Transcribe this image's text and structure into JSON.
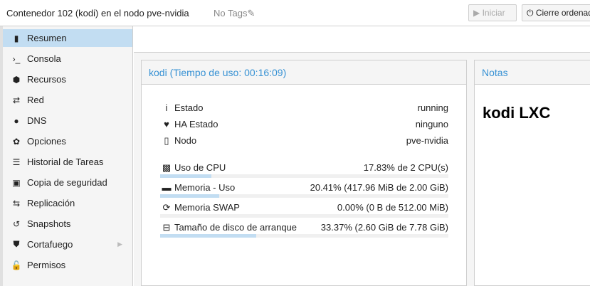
{
  "header": {
    "title": "Contenedor 102 (kodi) en el nodo pve-nvidia",
    "tags": "No Tags",
    "start_label": "Iniciar",
    "shutdown_label": "Cierre ordenado"
  },
  "sidebar": {
    "items": [
      {
        "label": "Resumen",
        "icon": "book-icon",
        "active": true
      },
      {
        "label": "Consola",
        "icon": "terminal-icon"
      },
      {
        "label": "Recursos",
        "icon": "cube-icon"
      },
      {
        "label": "Red",
        "icon": "exchange-icon"
      },
      {
        "label": "DNS",
        "icon": "globe-icon"
      },
      {
        "label": "Opciones",
        "icon": "gear-icon"
      },
      {
        "label": "Historial de Tareas",
        "icon": "list-icon"
      },
      {
        "label": "Copia de seguridad",
        "icon": "floppy-icon"
      },
      {
        "label": "Replicación",
        "icon": "retweet-icon"
      },
      {
        "label": "Snapshots",
        "icon": "history-icon"
      },
      {
        "label": "Cortafuego",
        "icon": "shield-icon",
        "expandable": true
      },
      {
        "label": "Permisos",
        "icon": "unlock-icon"
      }
    ]
  },
  "status": {
    "title": "kodi (Tiempo de uso: 00:16:09)",
    "info": [
      {
        "label": "Estado",
        "value": "running",
        "icon": "info-icon"
      },
      {
        "label": "HA Estado",
        "value": "ninguno",
        "icon": "heartbeat-icon"
      },
      {
        "label": "Nodo",
        "value": "pve-nvidia",
        "icon": "server-icon"
      }
    ],
    "usage": [
      {
        "label": "Uso de CPU",
        "value": "17.83% de 2 CPU(s)",
        "percent": 17.83,
        "icon": "cpu-icon"
      },
      {
        "label": "Memoria - Uso",
        "value": "20.41% (417.96 MiB de 2.00 GiB)",
        "percent": 20.41,
        "icon": "memory-icon"
      },
      {
        "label": "Memoria SWAP",
        "value": "0.00% (0 B de 512.00 MiB)",
        "percent": 0,
        "icon": "refresh-icon"
      },
      {
        "label": "Tamaño de disco de arranque",
        "value": "33.37% (2.60 GiB de 7.78 GiB)",
        "percent": 33.37,
        "icon": "hdd-icon"
      }
    ]
  },
  "notes": {
    "title": "Notas",
    "content": "kodi LXC"
  },
  "colors": {
    "accent": "#3892d4",
    "selected": "#c2ddf2"
  }
}
